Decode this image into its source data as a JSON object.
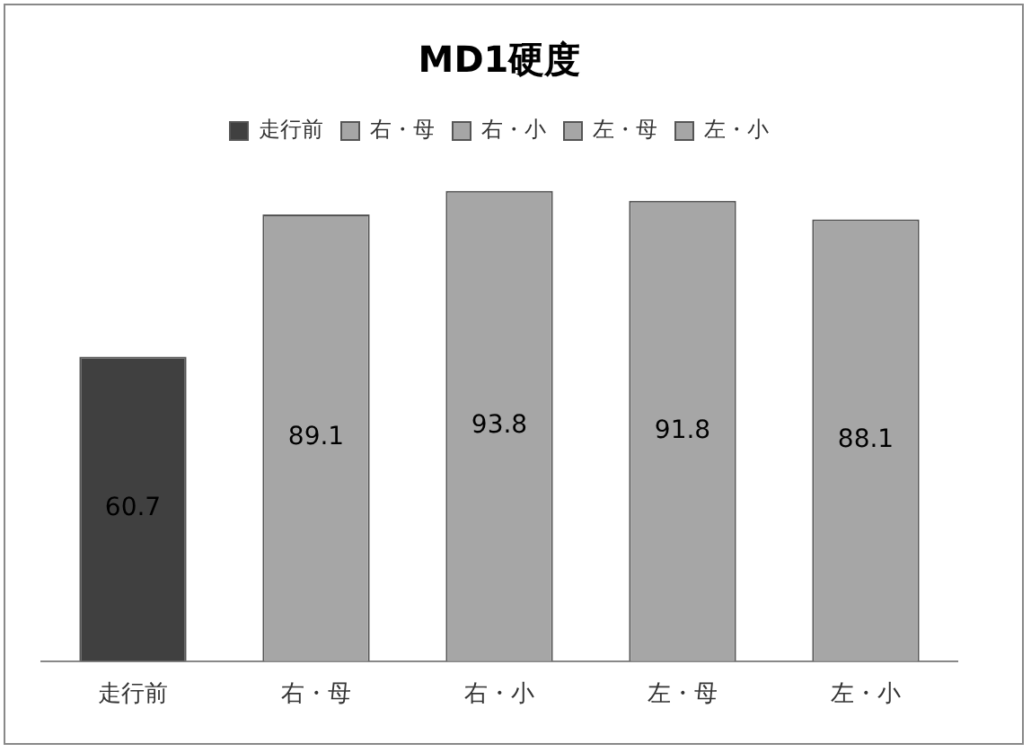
{
  "chart_data": {
    "type": "bar",
    "title": "MD1硬度",
    "categories": [
      "走行前",
      "右・母",
      "右・小",
      "左・母",
      "左・小"
    ],
    "series": [
      {
        "name": "走行前",
        "color": "#404040",
        "values": [
          60.7,
          null,
          null,
          null,
          null
        ]
      },
      {
        "name": "右・母",
        "color": "#a6a6a6",
        "values": [
          null,
          89.1,
          null,
          null,
          null
        ]
      },
      {
        "name": "右・小",
        "color": "#a6a6a6",
        "values": [
          null,
          null,
          93.8,
          null,
          null
        ]
      },
      {
        "name": "左・母",
        "color": "#a6a6a6",
        "values": [
          null,
          null,
          null,
          91.8,
          null
        ]
      },
      {
        "name": "左・小",
        "color": "#a6a6a6",
        "values": [
          null,
          null,
          null,
          null,
          88.1
        ]
      }
    ],
    "data_labels": true,
    "legend": "top",
    "grid": false,
    "tick_labels": "x"
  }
}
